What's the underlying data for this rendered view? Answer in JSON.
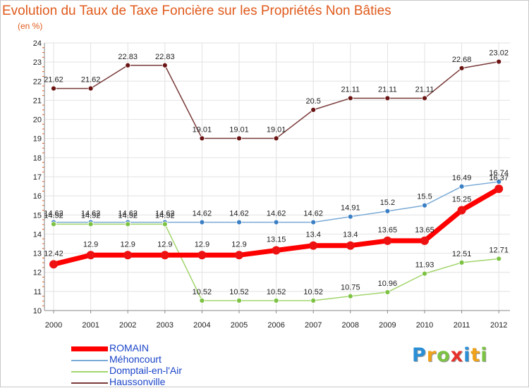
{
  "title": "Evolution du Taux de Taxe Foncière sur les Propriétés Non Bâties",
  "unit_label": "(en %)",
  "colors": {
    "title": "#e05a1c",
    "legend_text": "#1a44c8",
    "grid": "#e2e2e2",
    "axis": "#888888"
  },
  "logo": {
    "text": "Proxiti",
    "letters": [
      {
        "ch": "P",
        "color": "#2b8fd6"
      },
      {
        "ch": "r",
        "color": "#f0a21a"
      },
      {
        "ch": "o",
        "color": "#7cc243"
      },
      {
        "ch": "x",
        "color": "#e8312b"
      },
      {
        "ch": "i",
        "color": "#2b8fd6"
      },
      {
        "ch": "t",
        "color": "#f0a21a"
      },
      {
        "ch": "i",
        "color": "#7cc243"
      }
    ]
  },
  "chart_data": {
    "type": "line",
    "x": [
      "2000",
      "2001",
      "2002",
      "2003",
      "2004",
      "2005",
      "2006",
      "2007",
      "2008",
      "2009",
      "2010",
      "2011",
      "2012"
    ],
    "ylim": [
      10,
      24
    ],
    "yticks": [
      "10",
      "11",
      "12",
      "13",
      "14",
      "15",
      "16",
      "17",
      "18",
      "19",
      "20",
      "21",
      "22",
      "23",
      "24"
    ],
    "grid": true,
    "legend_position": "bottom-left",
    "series": [
      {
        "name": "ROMAIN",
        "color": "#ff0000",
        "marker": "#ee1111",
        "width": 7,
        "values": [
          12.42,
          12.9,
          12.9,
          12.9,
          12.9,
          12.9,
          13.15,
          13.4,
          13.4,
          13.65,
          13.65,
          15.25,
          16.37
        ],
        "labels": [
          "12.42",
          "12.9",
          "12.9",
          "12.9",
          "12.9",
          "12.9",
          "13.15",
          "13.4",
          "13.4",
          "13.65",
          "13.65",
          "15.25",
          "16.37"
        ]
      },
      {
        "name": "Méhoncourt",
        "color": "#7aaad6",
        "marker": "#3a7fc4",
        "width": 1.5,
        "values": [
          14.62,
          14.62,
          14.62,
          14.62,
          14.62,
          14.62,
          14.62,
          14.62,
          14.91,
          15.2,
          15.5,
          16.49,
          16.74
        ],
        "labels": [
          "14.62",
          "14.62",
          "14.62",
          "14.62",
          "14.62",
          "14.62",
          "14.62",
          "14.62",
          "14.91",
          "15.2",
          "15.5",
          "16.49",
          "16.74"
        ]
      },
      {
        "name": "Domptail-en-l'Air",
        "color": "#a2d56c",
        "marker": "#7cc243",
        "width": 1.5,
        "values": [
          14.52,
          14.52,
          14.52,
          14.52,
          10.52,
          10.52,
          10.52,
          10.52,
          10.75,
          10.96,
          11.93,
          12.51,
          12.71
        ],
        "labels": [
          "14.52",
          "14.52",
          "14.52",
          "14.52",
          "10.52",
          "10.52",
          "10.52",
          "10.52",
          "10.75",
          "10.96",
          "11.93",
          "12.51",
          "12.71"
        ]
      },
      {
        "name": "Haussonville",
        "color": "#7a3a3a",
        "marker": "#6b1414",
        "width": 1.5,
        "values": [
          21.62,
          21.62,
          22.83,
          22.83,
          19.01,
          19.01,
          19.01,
          20.5,
          21.11,
          21.11,
          21.11,
          22.68,
          23.02
        ],
        "labels": [
          "21.62",
          "21.62",
          "22.83",
          "22.83",
          "19.01",
          "19.01",
          "19.01",
          "20.5",
          "21.11",
          "21.11",
          "21.11",
          "22.68",
          "23.02"
        ]
      }
    ]
  }
}
